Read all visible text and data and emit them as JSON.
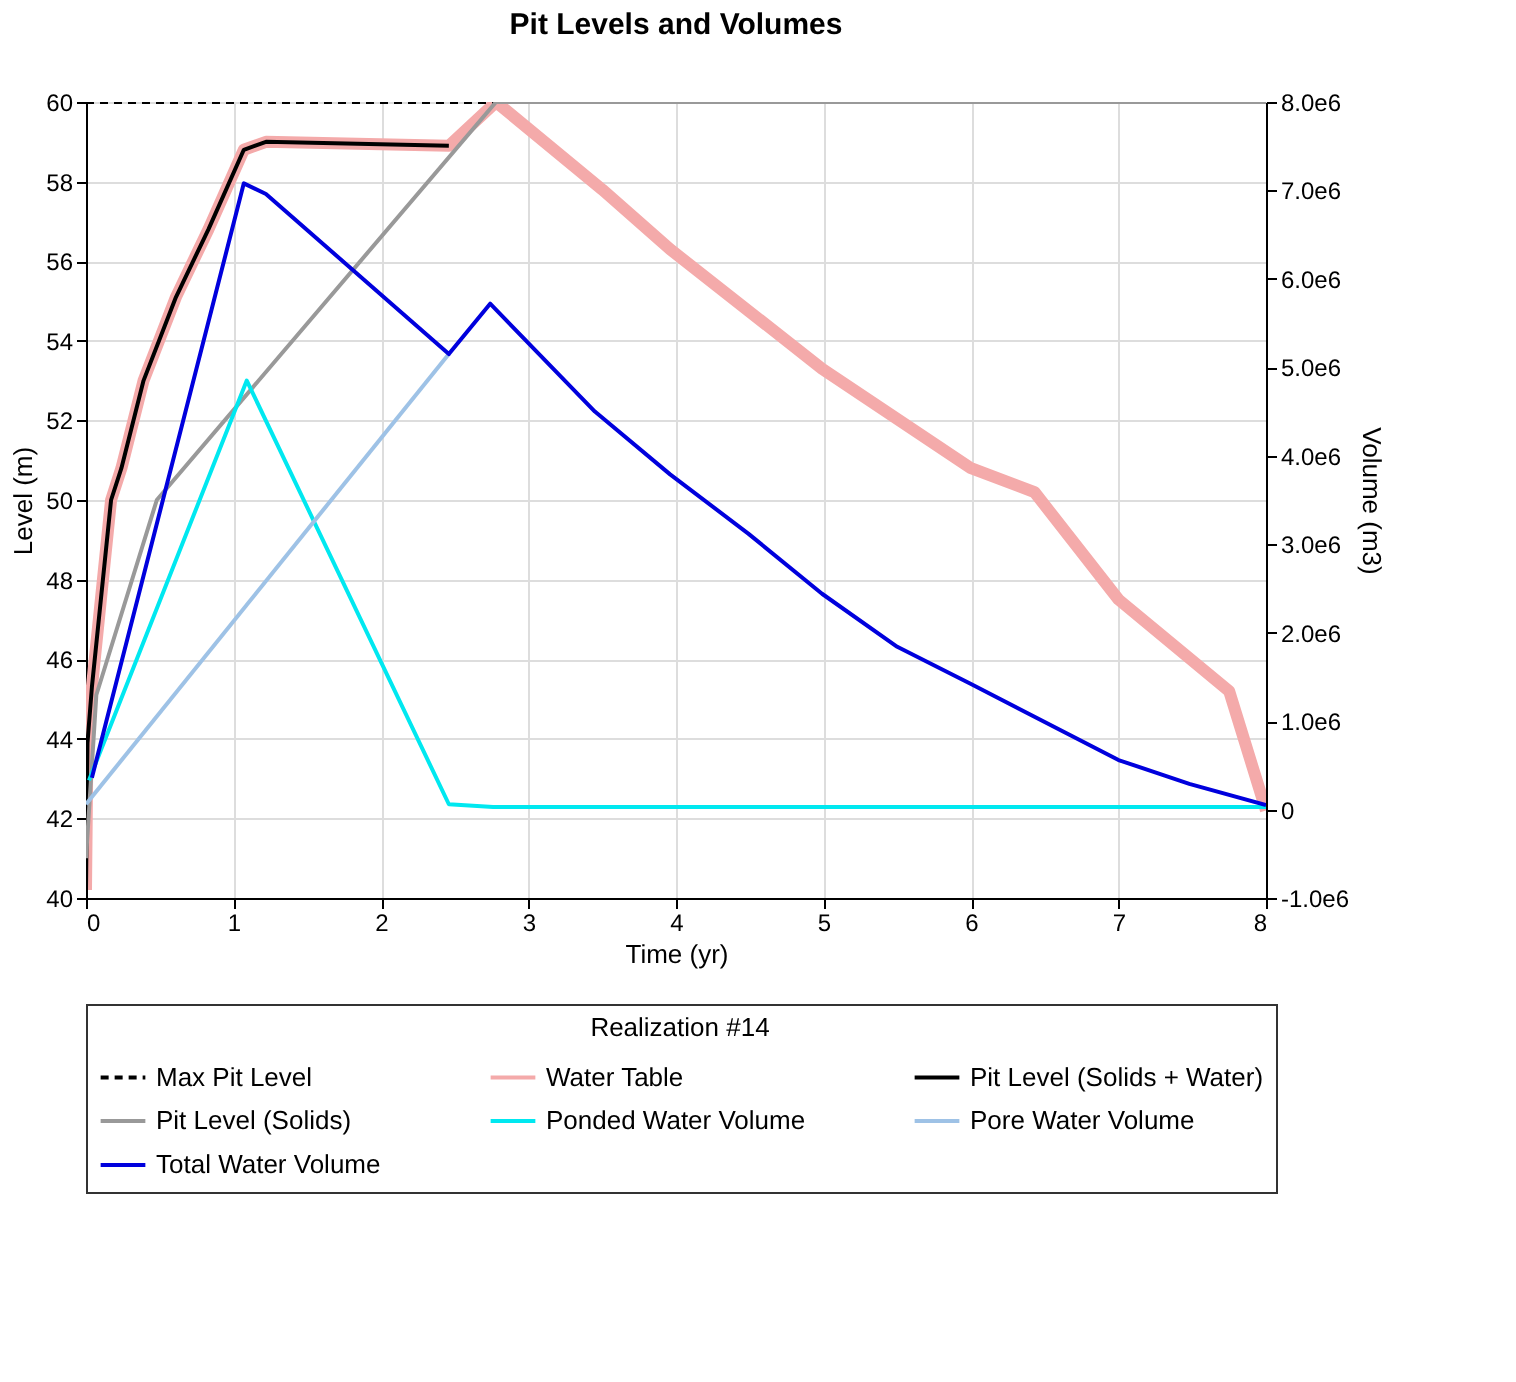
{
  "chart_data": {
    "type": "line",
    "title": "Pit Levels and Volumes",
    "xlabel": "Time (yr)",
    "ylabel": "Level (m)",
    "y2label": "Volume (m3)",
    "legend_title": "Realization #14",
    "legend": "bottom",
    "grid": true,
    "xlim": [
      0,
      8
    ],
    "xticks": [
      0,
      1,
      2,
      3,
      4,
      5,
      6,
      7,
      8
    ],
    "ylim": [
      40,
      60
    ],
    "yticks": [
      40,
      42,
      44,
      46,
      48,
      50,
      52,
      54,
      56,
      58,
      60
    ],
    "y2lim": [
      -1000000,
      8000000
    ],
    "y2ticks": [
      {
        "value": -1000000,
        "label": "-1.0e6"
      },
      {
        "value": 0,
        "label": "0"
      },
      {
        "value": 1000000,
        "label": "1.0e6"
      },
      {
        "value": 2000000,
        "label": "2.0e6"
      },
      {
        "value": 3000000,
        "label": "3.0e6"
      },
      {
        "value": 4000000,
        "label": "4.0e6"
      },
      {
        "value": 5000000,
        "label": "5.0e6"
      },
      {
        "value": 6000000,
        "label": "6.0e6"
      },
      {
        "value": 7000000,
        "label": "7.0e6"
      },
      {
        "value": 8000000,
        "label": "8.0e6"
      }
    ],
    "series": [
      {
        "name": "Max Pit Level",
        "color": "#000000",
        "line_style": "dashed",
        "x": [
          0,
          2.78
        ],
        "values": [
          60,
          60
        ]
      },
      {
        "name": "Water Table",
        "color": "#f4aaaa",
        "line_style": "solid",
        "x": [
          0,
          0.01,
          0.04,
          0.17,
          0.24,
          0.39,
          0.61,
          0.83,
          1.07,
          1.22,
          2.46,
          2.78,
          3.5,
          3.96,
          4.99,
          6.0,
          6.43,
          7.0,
          7.75,
          8.0
        ],
        "values": [
          40.2,
          43.9,
          45.3,
          50.0,
          50.8,
          53.0,
          55.1,
          56.8,
          58.8,
          59.0,
          58.9,
          60,
          57.8,
          56.3,
          53.3,
          50.8,
          50.2,
          47.5,
          45.2,
          42.2
        ]
      },
      {
        "name": "Pit Level (Solids + Water)",
        "color": "#000000",
        "line_style": "solid",
        "x": [
          0,
          0.01,
          0.04,
          0.17,
          0.24,
          0.39,
          0.61,
          0.83,
          1.07,
          1.22,
          2.46
        ],
        "values": [
          40.2,
          43.9,
          45.3,
          50.0,
          50.8,
          53.0,
          55.1,
          56.8,
          58.8,
          59.0,
          58.9
        ]
      },
      {
        "name": "Pit Level (Solids)",
        "color": "#999999",
        "line_style": "solid",
        "x": [
          0,
          0.07,
          0.48,
          2.78,
          8.0
        ],
        "values": [
          41.0,
          45.1,
          50.0,
          60,
          60
        ]
      },
      {
        "name": "Ponded Water Volume",
        "color": "#00e8f0",
        "line_style": "solid",
        "axis": "y2",
        "x": [
          0.02,
          1.09,
          2.46,
          2.76,
          8.0
        ],
        "values": [
          330000,
          4850000,
          60000,
          30000,
          30000
        ]
      },
      {
        "name": "Pore Water Volume",
        "color": "#9ec2e6",
        "line_style": "solid",
        "axis": "y2",
        "x": [
          0,
          2.46
        ],
        "values": [
          60000,
          5150000
        ]
      },
      {
        "name": "Total Water Volume",
        "color": "#0000dd",
        "line_style": "solid",
        "axis": "y2",
        "x": [
          0.04,
          1.07,
          1.22,
          2.46,
          2.74,
          3.45,
          3.96,
          4.49,
          4.99,
          5.5,
          6.0,
          7.0,
          7.48,
          8.0
        ],
        "values": [
          360000,
          7080000,
          6960000,
          5150000,
          5720000,
          4500000,
          3790000,
          3120000,
          2440000,
          1840000,
          1420000,
          560000,
          290000,
          50000
        ]
      }
    ]
  }
}
